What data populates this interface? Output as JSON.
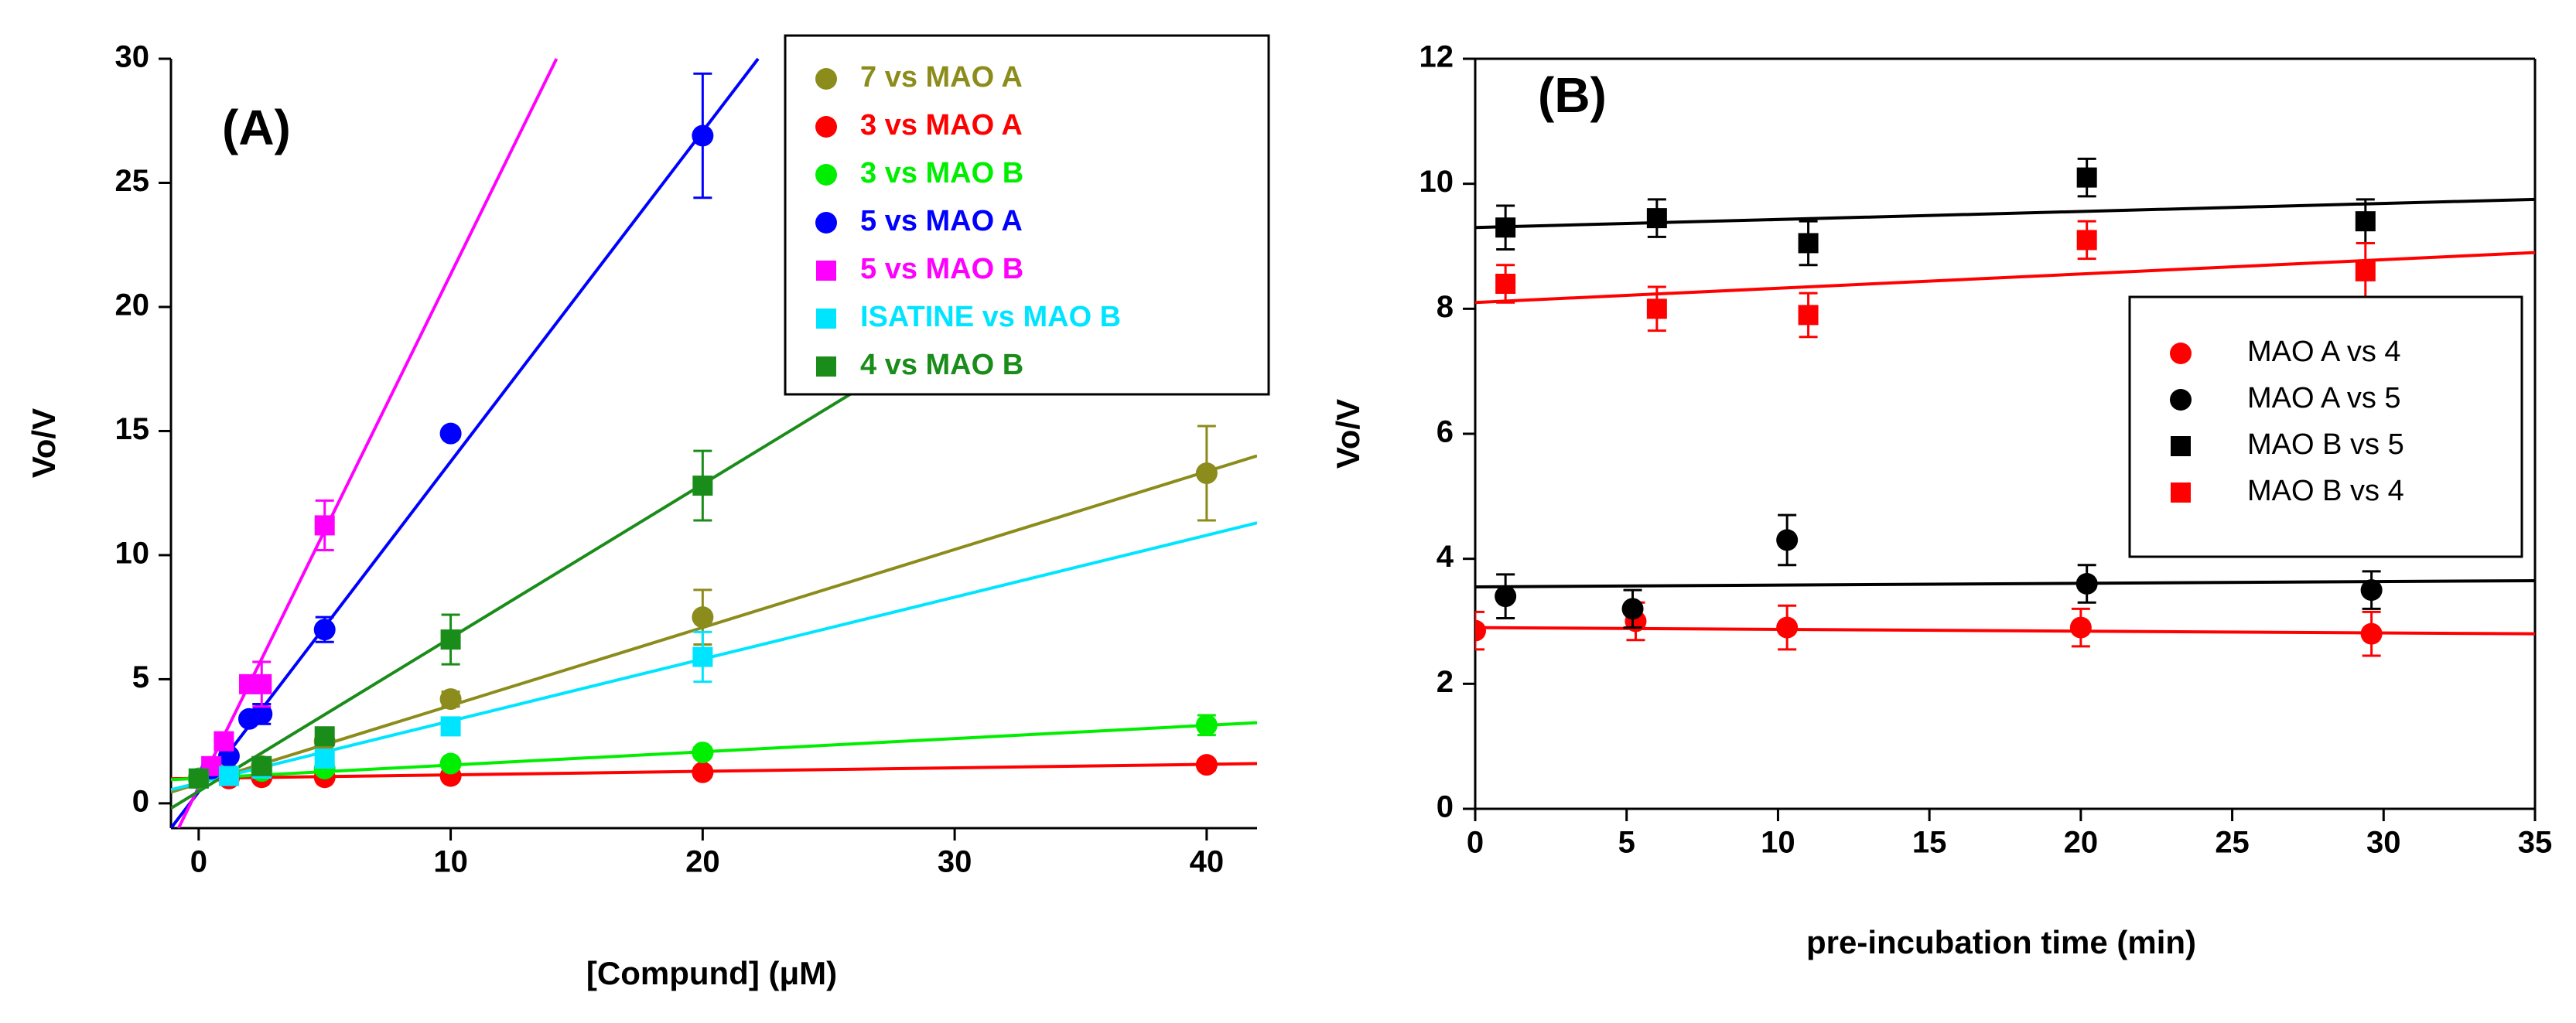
{
  "chart_data": [
    {
      "type": "scatter",
      "label": "(A)",
      "xlabel": "[Compund] (μM)",
      "ylabel": "Vo/V",
      "xlim": [
        -1.1,
        42
      ],
      "ylim": [
        -1,
        30
      ],
      "xticks": [
        0,
        10,
        20,
        30,
        40
      ],
      "yticks": [
        0,
        5,
        10,
        15,
        20,
        25,
        30
      ],
      "box": false,
      "legend": "upper right",
      "series": [
        {
          "name": "7 vs MAO A",
          "color": "#8c8c1c",
          "marker": "circle",
          "x": [
            0,
            1.2,
            2.5,
            5,
            10,
            20,
            40
          ],
          "values": [
            1.0,
            1.2,
            1.5,
            2.5,
            4.2,
            7.5,
            13.3
          ],
          "errors": [
            null,
            null,
            null,
            null,
            0.3,
            1.1,
            1.9
          ],
          "fit": {
            "x": [
              -1.1,
              42
            ],
            "y": [
              0.45,
              14.0
            ]
          }
        },
        {
          "name": "3 vs MAO A",
          "color": "#ff0000",
          "marker": "circle",
          "x": [
            0,
            1.2,
            2.5,
            5,
            10,
            20,
            40
          ],
          "values": [
            1.0,
            1.0,
            1.05,
            1.05,
            1.1,
            1.25,
            1.55
          ],
          "errors": [
            null,
            null,
            null,
            null,
            null,
            null,
            0.2
          ],
          "fit": {
            "x": [
              -1.1,
              42
            ],
            "y": [
              0.99,
              1.6
            ]
          }
        },
        {
          "name": "3 vs MAO B",
          "color": "#00ee00",
          "marker": "circle",
          "x": [
            0,
            1.2,
            2.5,
            5,
            10,
            20,
            40
          ],
          "values": [
            1.0,
            1.15,
            1.3,
            1.4,
            1.6,
            2.05,
            3.15
          ],
          "errors": [
            null,
            null,
            null,
            null,
            null,
            0.2,
            0.4
          ],
          "fit": {
            "x": [
              -1.1,
              42
            ],
            "y": [
              0.95,
              3.25
            ]
          }
        },
        {
          "name": "5 vs MAO A",
          "color": "#0000ff",
          "marker": "circle",
          "x": [
            0.5,
            1.2,
            2,
            2.5,
            5,
            10,
            20
          ],
          "values": [
            1.4,
            1.9,
            3.4,
            3.6,
            7.0,
            14.9,
            26.9
          ],
          "errors": [
            null,
            null,
            null,
            0.4,
            0.5,
            null,
            2.5
          ],
          "fit": {
            "x": [
              -1.1,
              22.2
            ],
            "y": [
              -1.0,
              30
            ]
          }
        },
        {
          "name": "5 vs MAO B",
          "color": "#ff00ff",
          "marker": "square",
          "x": [
            0.5,
            1,
            2,
            2.5,
            5
          ],
          "values": [
            1.5,
            2.5,
            4.8,
            4.8,
            11.2
          ],
          "errors": [
            null,
            null,
            null,
            0.9,
            1.0
          ],
          "fit": {
            "x": [
              -0.8,
              14.2
            ],
            "y": [
              -1.0,
              30
            ]
          }
        },
        {
          "name": "ISATINE vs MAO B",
          "color": "#00e5ff",
          "marker": "square",
          "x": [
            0,
            1.2,
            2.5,
            5,
            10,
            20
          ],
          "values": [
            1.0,
            1.1,
            1.4,
            1.8,
            3.1,
            5.9
          ],
          "errors": [
            null,
            null,
            null,
            null,
            null,
            1.0
          ],
          "fit": {
            "x": [
              -1.1,
              42
            ],
            "y": [
              0.55,
              11.3
            ]
          }
        },
        {
          "name": "4 vs MAO B",
          "color": "#1a8c1a",
          "marker": "square",
          "x": [
            0,
            2.5,
            5,
            10,
            20
          ],
          "values": [
            1.0,
            1.5,
            2.7,
            6.6,
            12.8
          ],
          "errors": [
            null,
            null,
            null,
            1.0,
            1.4
          ],
          "fit": {
            "x": [
              -1.1,
              27.5
            ],
            "y": [
              -0.2,
              17.5
            ]
          }
        }
      ]
    },
    {
      "type": "scatter",
      "label": "(B)",
      "xlabel": "pre-incubation time (min)",
      "ylabel": "Vo/V",
      "xlim": [
        0,
        35
      ],
      "ylim": [
        0,
        12
      ],
      "xticks": [
        0,
        5,
        10,
        15,
        20,
        25,
        30,
        35
      ],
      "yticks": [
        0,
        2,
        4,
        6,
        8,
        10,
        12
      ],
      "box": true,
      "legend": "center right",
      "series": [
        {
          "name": "MAO A vs 4",
          "color": "#ff0000",
          "marker": "circle",
          "x": [
            0,
            5.3,
            10.3,
            20,
            29.6
          ],
          "values": [
            2.85,
            3.0,
            2.9,
            2.9,
            2.8
          ],
          "errors": [
            0.3,
            0.3,
            0.35,
            0.3,
            0.35
          ],
          "fit": {
            "x": [
              0,
              35
            ],
            "y": [
              2.9,
              2.8
            ]
          }
        },
        {
          "name": "MAO A vs 5",
          "color": "#000000",
          "marker": "circle",
          "x": [
            1,
            5.2,
            10.3,
            20.2,
            29.6
          ],
          "values": [
            3.4,
            3.2,
            4.3,
            3.6,
            3.5
          ],
          "errors": [
            0.35,
            0.3,
            0.4,
            0.3,
            0.3
          ],
          "fit": {
            "x": [
              0,
              35
            ],
            "y": [
              3.55,
              3.65
            ]
          }
        },
        {
          "name": "MAO B vs 5",
          "color": "#000000",
          "marker": "square",
          "x": [
            1,
            6,
            11,
            20.2,
            29.4
          ],
          "values": [
            9.3,
            9.45,
            9.05,
            10.1,
            9.4
          ],
          "errors": [
            0.35,
            0.3,
            0.35,
            0.3,
            0.35
          ],
          "fit": {
            "x": [
              0,
              35
            ],
            "y": [
              9.3,
              9.75
            ]
          }
        },
        {
          "name": "MAO B vs 4",
          "color": "#ff0000",
          "marker": "square",
          "x": [
            1,
            6,
            11,
            20.2,
            29.4
          ],
          "values": [
            8.4,
            8.0,
            7.9,
            9.1,
            8.6
          ],
          "errors": [
            0.3,
            0.35,
            0.35,
            0.3,
            0.45
          ],
          "fit": {
            "x": [
              0,
              35
            ],
            "y": [
              8.1,
              8.9
            ]
          }
        }
      ]
    }
  ]
}
